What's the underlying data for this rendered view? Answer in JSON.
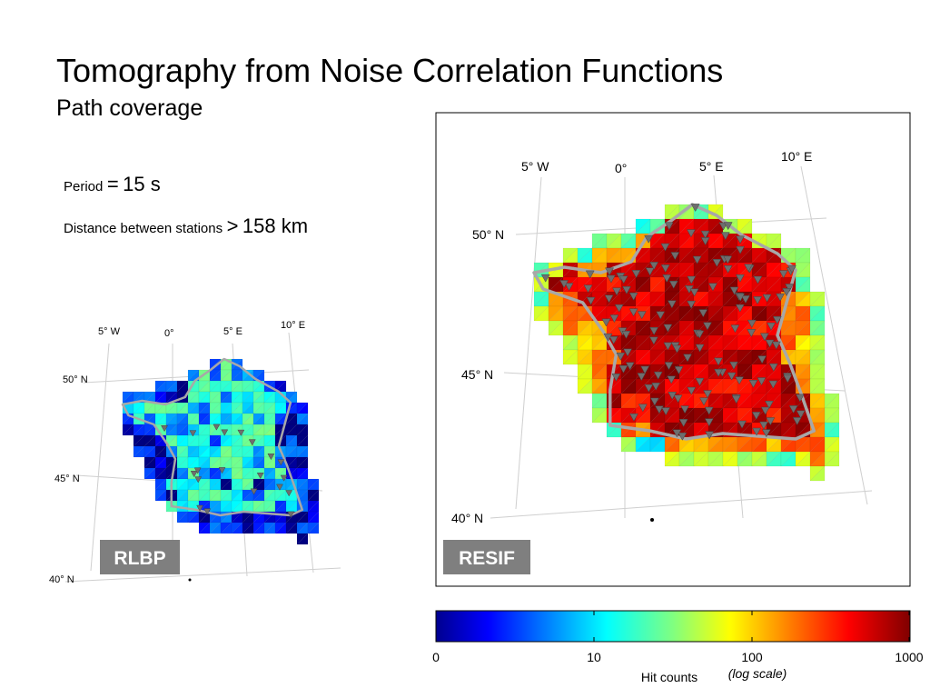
{
  "slide": {
    "title": "Tomography from Noise Correlation Functions",
    "subtitle": "Path coverage"
  },
  "parameters": {
    "period_label": "Period",
    "period_op": "=",
    "period_value": "15 s",
    "distance_label": "Distance between stations",
    "distance_op": ">",
    "distance_value": "158 km"
  },
  "chart_data": [
    {
      "type": "heatmap",
      "map_name": "RLBP",
      "longitude_labels": [
        "5° W",
        "0°",
        "5° E",
        "10° E"
      ],
      "latitude_labels": [
        "50° N",
        "45° N",
        "40° N"
      ],
      "value_name": "Hit counts",
      "scale": "log",
      "coverage_level_range": [
        0,
        30
      ],
      "colormap": "jet",
      "station_marker_color": "#6e6e6e"
    },
    {
      "type": "heatmap",
      "map_name": "RESIF",
      "longitude_labels": [
        "5° W",
        "0°",
        "5° E",
        "10° E"
      ],
      "latitude_labels": [
        "50° N",
        "45° N",
        "40° N"
      ],
      "value_name": "Hit counts",
      "scale": "log",
      "coverage_level_range": [
        100,
        1000
      ],
      "colormap": "jet",
      "station_marker_color": "#6e6e6e"
    }
  ],
  "colorbar": {
    "ticks": [
      "0",
      "10",
      "100",
      "1000"
    ],
    "label": "Hit counts",
    "scale_note": "(log scale)"
  },
  "colors": {
    "badge_bg": "#7f7f7f",
    "badge_text": "#ffffff",
    "border_outline": "#a8a8a8",
    "graticule": "#cfcfcf"
  }
}
